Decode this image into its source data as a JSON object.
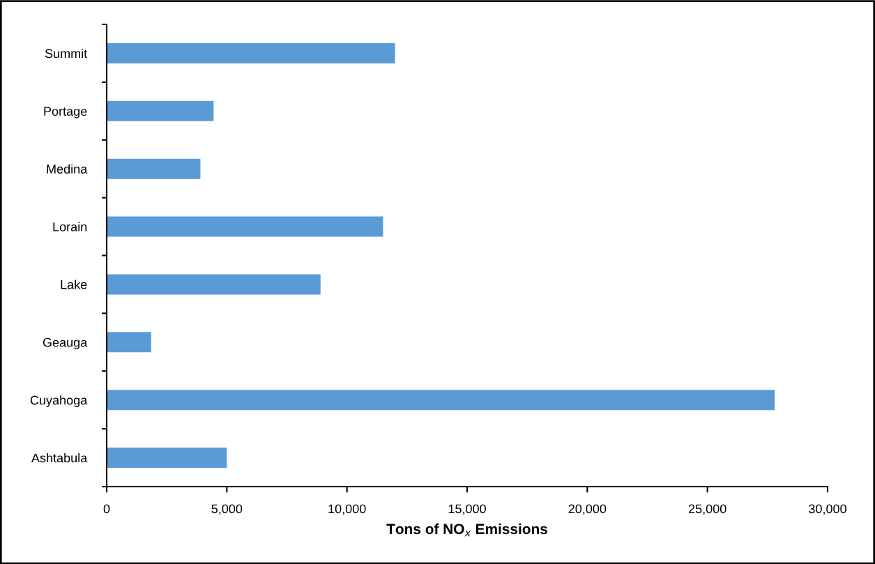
{
  "chart_data": {
    "type": "bar",
    "orientation": "horizontal",
    "categories": [
      "Summit",
      "Portage",
      "Medina",
      "Lorain",
      "Lake",
      "Geauga",
      "Cuyahoga",
      "Ashtabula"
    ],
    "values": [
      12000,
      4450,
      3900,
      11500,
      8900,
      1850,
      27800,
      5000
    ],
    "color": "#5b9bd5",
    "xlabel": "Tons of NO$_{x}$ Emissions",
    "xlim": [
      0,
      30000
    ],
    "xticks": [
      {
        "value": 0,
        "label": "0"
      },
      {
        "value": 5000,
        "label": "5,000"
      },
      {
        "value": 10000,
        "label": "10,000"
      },
      {
        "value": 15000,
        "label": "15,000"
      },
      {
        "value": 20000,
        "label": "20,000"
      },
      {
        "value": 25000,
        "label": "25,000"
      },
      {
        "value": 30000,
        "label": "30,000"
      }
    ],
    "grid": false
  }
}
